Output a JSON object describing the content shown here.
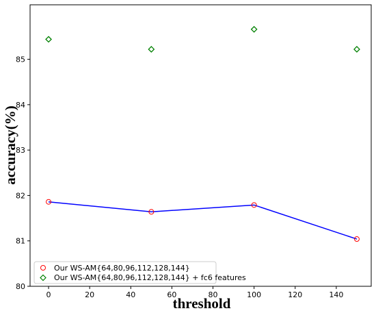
{
  "chart_data": {
    "type": "scatter",
    "title": "",
    "xlabel": "threshold",
    "ylabel": "accuracy(%)",
    "xlim": [
      -9,
      157
    ],
    "ylim": [
      80,
      86.2
    ],
    "xticks": [
      0,
      20,
      40,
      60,
      80,
      100,
      120,
      140
    ],
    "yticks": [
      80,
      81,
      82,
      83,
      84,
      85
    ],
    "grid": false,
    "legend_position": "lower-left",
    "series": [
      {
        "name": "Our WS-AM{64,80,96,112,128,144}",
        "marker": "circle",
        "color": "#ff0000",
        "line": true,
        "line_color": "#0000ff",
        "x": [
          0,
          50,
          100,
          150
        ],
        "y": [
          81.86,
          81.64,
          81.79,
          81.04
        ]
      },
      {
        "name": "Our WS-AM{64,80,96,112,128,144} + fc6 features",
        "marker": "diamond",
        "color": "#008000",
        "line": false,
        "x": [
          0,
          50,
          100,
          150
        ],
        "y": [
          85.44,
          85.22,
          85.66,
          85.22
        ]
      }
    ]
  }
}
